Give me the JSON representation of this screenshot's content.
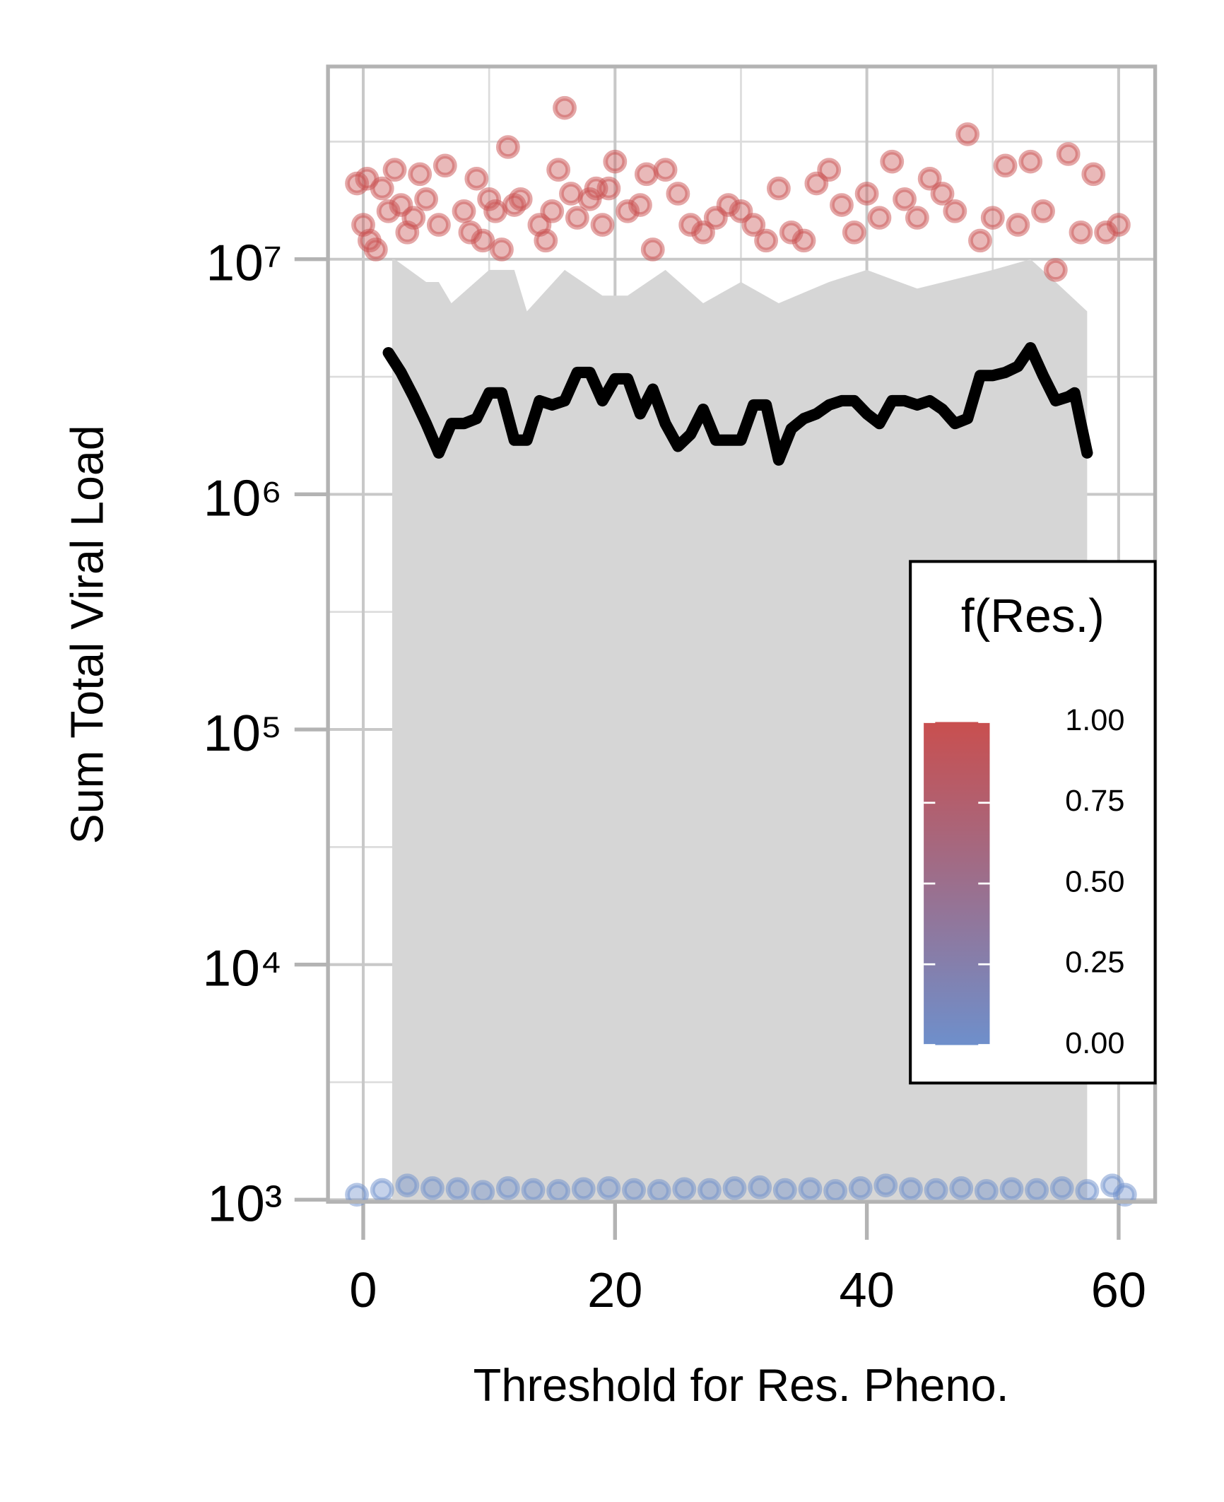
{
  "chart_data": {
    "type": "scatter",
    "xlabel": "Threshold for Res. Pheno.",
    "ylabel": "Sum Total Viral Load",
    "log_y": true,
    "grid": true,
    "xlim": [
      -2.8,
      62.9
    ],
    "ylim": [
      980,
      66000000.0
    ],
    "xticks": [
      0,
      20,
      40,
      60
    ],
    "yticks": [
      {
        "value": 1000,
        "label": "10³"
      },
      {
        "value": 10000,
        "label": "10⁴"
      },
      {
        "value": 100000,
        "label": "10⁵"
      },
      {
        "value": 1000000,
        "label": "10⁶"
      },
      {
        "value": 10000000,
        "label": "10⁷"
      }
    ],
    "xminor": [
      10,
      30,
      50
    ],
    "yminor": [
      3162,
      31623,
      316228,
      3162278,
      31622777
    ],
    "band": {
      "color": "#d6d6d6",
      "x": [
        2.3,
        2.5,
        5,
        6,
        7,
        10,
        12,
        13,
        16,
        19,
        21,
        24,
        27,
        30,
        33,
        37,
        40,
        44,
        50,
        53,
        55,
        57.5
      ],
      "upper": [
        10000000.0,
        10000000.0,
        8000000.0,
        8000000.0,
        6500000.0,
        9000000.0,
        9000000.0,
        6000000.0,
        9000000.0,
        7000000.0,
        7000000.0,
        9000000.0,
        6500000.0,
        8000000.0,
        6500000.0,
        8000000.0,
        9000000.0,
        7500000.0,
        9000000.0,
        10000000.0,
        8000000.0,
        6000000.0
      ]
    },
    "line": {
      "color": "#000000",
      "x": [
        2,
        3,
        4,
        5,
        6,
        7,
        8,
        9,
        10,
        11,
        12,
        13,
        14,
        15,
        16,
        17,
        18,
        19,
        20,
        21,
        22,
        23,
        24,
        25,
        26,
        27,
        28,
        29,
        30,
        31,
        32,
        33,
        34,
        35,
        36,
        37,
        38,
        39,
        40,
        41,
        42,
        43,
        44,
        45,
        46,
        47,
        48,
        49,
        50,
        51,
        52,
        53,
        54,
        55,
        56,
        56.5,
        57,
        57.5
      ],
      "y": [
        4000000.0,
        3300000.0,
        2600000.0,
        2000000.0,
        1500000.0,
        2000000.0,
        2000000.0,
        2100000.0,
        2700000.0,
        2700000.0,
        1700000.0,
        1700000.0,
        2500000.0,
        2400000.0,
        2500000.0,
        3300000.0,
        3300000.0,
        2500000.0,
        3100000.0,
        3100000.0,
        2200000.0,
        2800000.0,
        2000000.0,
        1600000.0,
        1800000.0,
        2300000.0,
        1700000.0,
        1700000.0,
        1700000.0,
        2400000.0,
        2400000.0,
        1400000.0,
        1900000.0,
        2100000.0,
        2200000.0,
        2400000.0,
        2500000.0,
        2500000.0,
        2200000.0,
        2000000.0,
        2500000.0,
        2500000.0,
        2400000.0,
        2500000.0,
        2300000.0,
        2000000.0,
        2100000.0,
        3200000.0,
        3200000.0,
        3300000.0,
        3500000.0,
        4200000.0,
        3200000.0,
        2500000.0,
        2600000.0,
        2700000.0,
        2000000.0,
        1500000.0
      ]
    },
    "points": [
      {
        "f": 1,
        "x": [
          -0.5,
          0,
          0.3,
          0.5,
          1,
          1.5,
          2,
          2.5,
          3,
          3.5,
          4,
          4.5,
          5,
          6,
          6.5,
          8,
          8.5,
          9,
          9.5,
          10,
          10.5,
          11,
          11.5,
          12,
          12.5,
          14,
          14.5,
          15,
          15.5,
          16,
          16.5,
          17,
          18,
          18.5,
          19,
          19.5,
          20,
          21,
          22,
          22.5,
          23,
          24,
          25,
          26,
          27,
          28,
          29,
          30,
          31,
          32,
          33,
          34,
          35,
          36,
          37,
          38,
          39,
          40,
          41,
          42,
          43,
          44,
          45,
          46,
          47,
          48,
          49,
          50,
          51,
          52,
          53,
          54,
          55,
          56,
          57,
          58,
          59,
          60
        ],
        "y": [
          21000000.0,
          14000000.0,
          22000000.0,
          12000000.0,
          11000000.0,
          20000000.0,
          16000000.0,
          24000000.0,
          17000000.0,
          13000000.0,
          15000000.0,
          23000000.0,
          18000000.0,
          14000000.0,
          25000000.0,
          16000000.0,
          13000000.0,
          22000000.0,
          12000000.0,
          18000000.0,
          16000000.0,
          11000000.0,
          30000000.0,
          17000000.0,
          18000000.0,
          14000000.0,
          12000000.0,
          16000000.0,
          24000000.0,
          44000000.0,
          19000000.0,
          15000000.0,
          18000000.0,
          20000000.0,
          14000000.0,
          20000000.0,
          26000000.0,
          16000000.0,
          17000000.0,
          23000000.0,
          11000000.0,
          24000000.0,
          19000000.0,
          14000000.0,
          13000000.0,
          15000000.0,
          17000000.0,
          16000000.0,
          14000000.0,
          12000000.0,
          20000000.0,
          13000000.0,
          12000000.0,
          21000000.0,
          24000000.0,
          17000000.0,
          13000000.0,
          19000000.0,
          15000000.0,
          26000000.0,
          18000000.0,
          15000000.0,
          22000000.0,
          19000000.0,
          16000000.0,
          34000000.0,
          12000000.0,
          15000000.0,
          25000000.0,
          14000000.0,
          26000000.0,
          16000000.0,
          9000000.0,
          28000000.0,
          13000000.0,
          23000000.0,
          13000000.0,
          14000000.0
        ]
      },
      {
        "f": 0,
        "x": [
          -0.5,
          1.5,
          3.5,
          5.5,
          7.5,
          9.5,
          11.5,
          13.5,
          15.5,
          17.5,
          19.5,
          21.5,
          23.5,
          25.5,
          27.5,
          29.5,
          31.5,
          33.5,
          35.5,
          37.5,
          39.5,
          41.5,
          43.5,
          45.5,
          47.5,
          49.5,
          51.5,
          53.5,
          55.5,
          57.5,
          59.5,
          60.5
        ],
        "y": [
          1050,
          1100,
          1150,
          1120,
          1110,
          1080,
          1120,
          1100,
          1090,
          1110,
          1120,
          1100,
          1090,
          1110,
          1100,
          1120,
          1130,
          1100,
          1110,
          1090,
          1120,
          1150,
          1110,
          1100,
          1120,
          1090,
          1110,
          1100,
          1120,
          1090,
          1150,
          1050
        ]
      }
    ],
    "colorbar": {
      "title": "f(Res.)",
      "low_color": "#6e8fcb",
      "high_color": "#c94f4f",
      "range": [
        0,
        1
      ],
      "ticks": [
        {
          "value": 0,
          "label": "0.00"
        },
        {
          "value": 0.25,
          "label": "0.25"
        },
        {
          "value": 0.5,
          "label": "0.50"
        },
        {
          "value": 0.75,
          "label": "0.75"
        },
        {
          "value": 1,
          "label": "1.00"
        }
      ]
    }
  }
}
